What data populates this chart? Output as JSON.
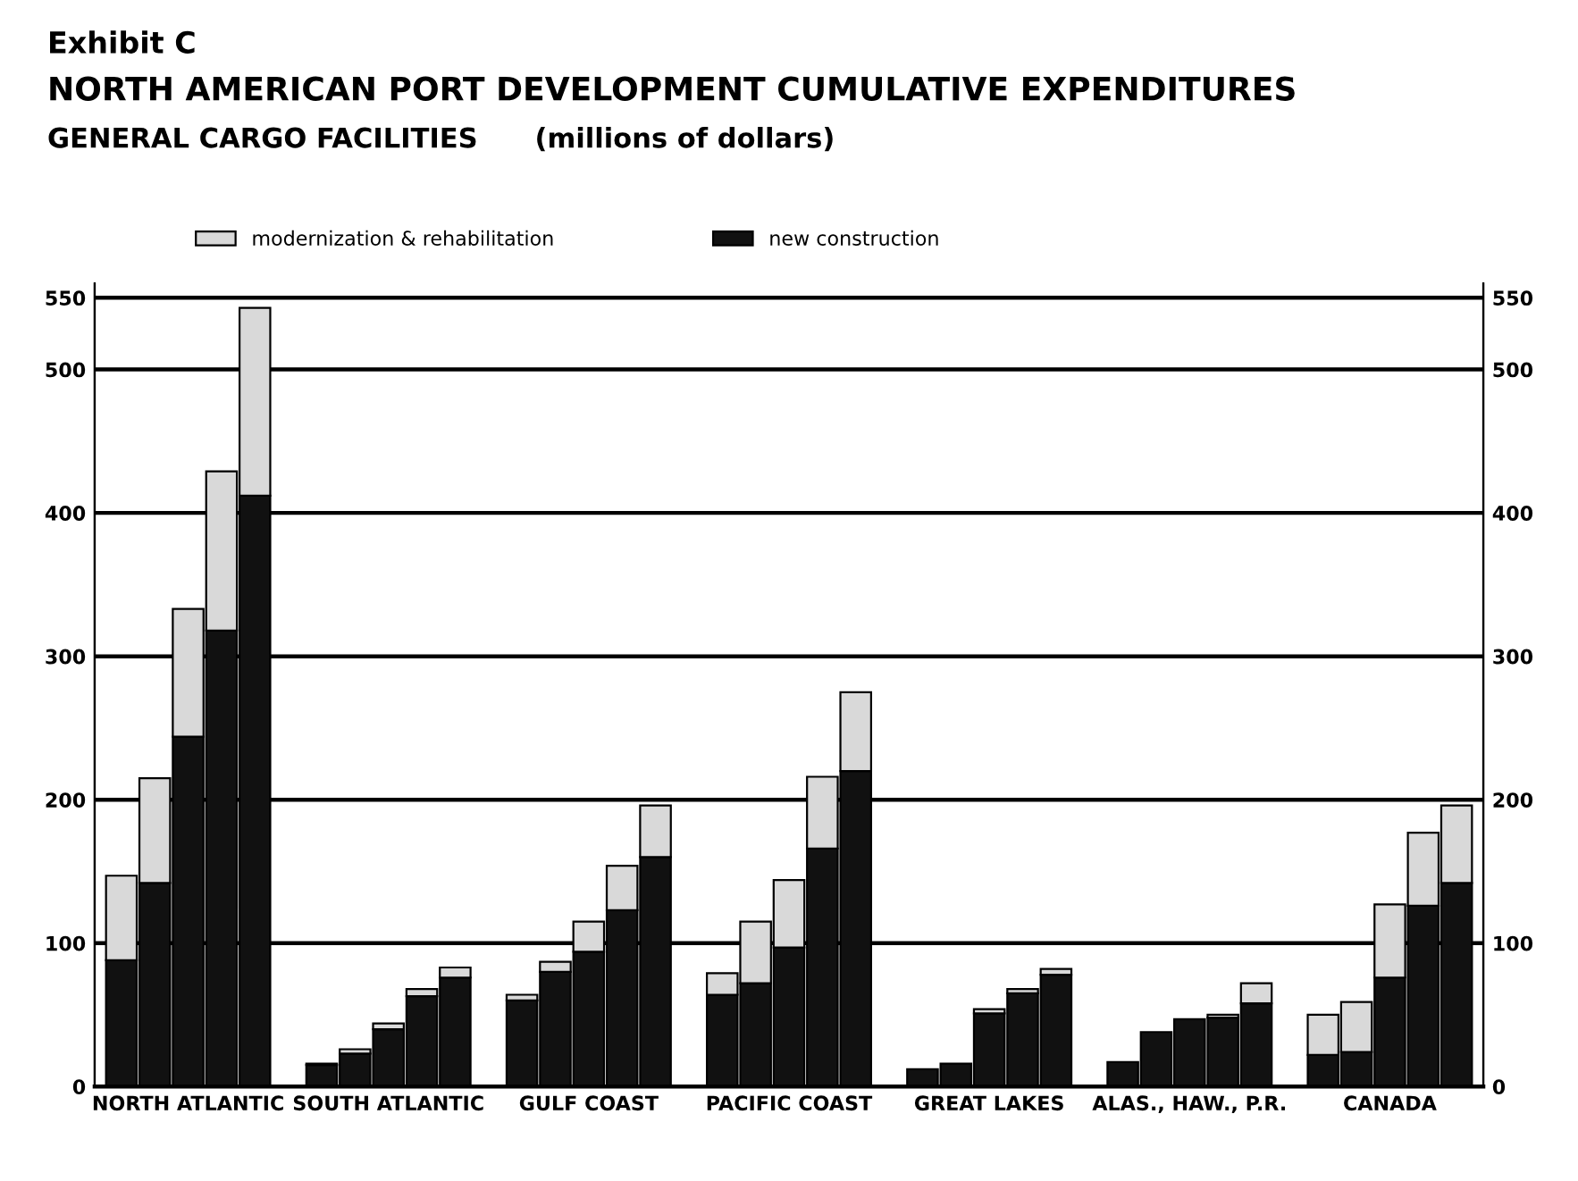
{
  "chart_data": {
    "type": "bar",
    "stacked": true,
    "annotations": [
      "Exhibit C"
    ],
    "title": "NORTH AMERICAN PORT DEVELOPMENT CUMULATIVE EXPENDITURES",
    "subtitle": "GENERAL CARGO FACILITIES      (millions of dollars)",
    "categories": [
      null,
      null,
      "NORTH ATLANTIC",
      null,
      null,
      null,
      null,
      null,
      "SOUTH ATLANTIC",
      null,
      null,
      null,
      null,
      null,
      "GULF COAST",
      null,
      null,
      null,
      null,
      null,
      "PACIFIC COAST",
      null,
      null,
      null,
      null,
      null,
      "GREAT LAKES",
      null,
      null,
      null,
      null,
      null,
      "ALAS., HAW., P.R.",
      null,
      null,
      null,
      null,
      null,
      "CANADA",
      null,
      null
    ],
    "series": [
      {
        "name": "new construction",
        "color": "#111111",
        "values": [
          88,
          142,
          244,
          318,
          412,
          null,
          15,
          23,
          40,
          63,
          76,
          null,
          60,
          80,
          94,
          123,
          160,
          null,
          64,
          72,
          97,
          166,
          220,
          null,
          12,
          16,
          51,
          65,
          78,
          null,
          17,
          38,
          47,
          48,
          58,
          null,
          22,
          24,
          76,
          126,
          142
        ]
      },
      {
        "name": "modernization & rehabilitation",
        "color": "#d9d9d9",
        "values": [
          59,
          73,
          89,
          111,
          131,
          null,
          1,
          3,
          4,
          5,
          7,
          null,
          4,
          7,
          21,
          31,
          36,
          null,
          15,
          43,
          47,
          50,
          55,
          null,
          null,
          null,
          3,
          3,
          4,
          null,
          null,
          null,
          null,
          2,
          14,
          null,
          28,
          35,
          51,
          51,
          54
        ]
      }
    ],
    "ylim": [
      0,
      560
    ],
    "yticks": [
      0,
      100,
      200,
      300,
      400,
      500,
      550
    ],
    "y2lim": [
      0,
      560
    ],
    "y2ticks": [
      0,
      100,
      200,
      300,
      400,
      500,
      550
    ],
    "grid": "y",
    "legend": "top left"
  }
}
